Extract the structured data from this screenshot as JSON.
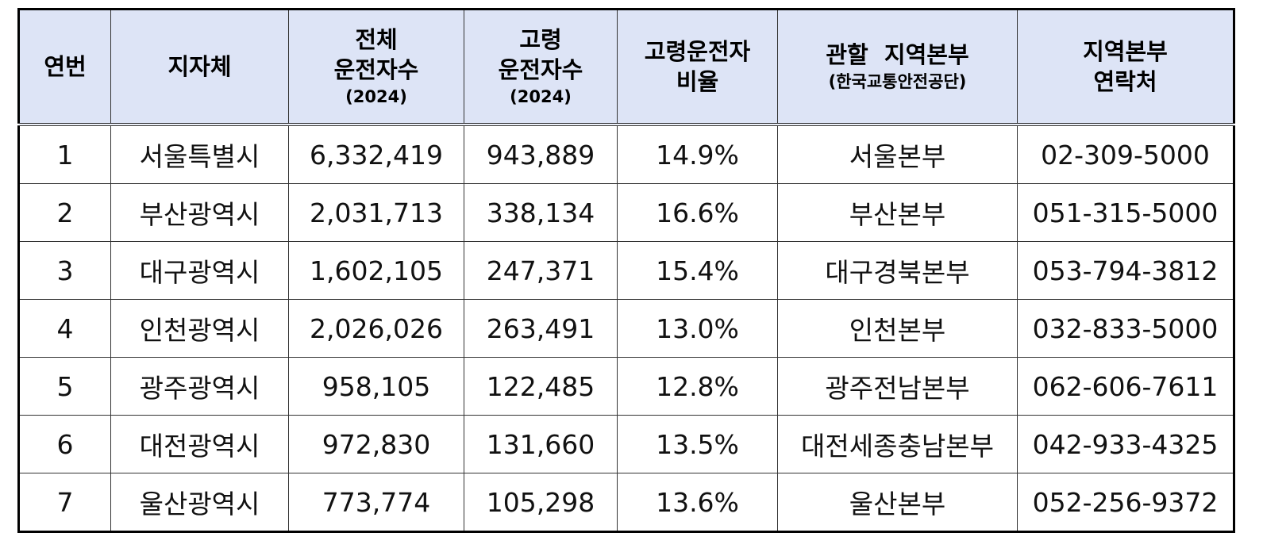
{
  "table": {
    "header": [
      [
        "연번"
      ],
      [
        "지자체"
      ],
      [
        "전체",
        "운전자수",
        "(2024)"
      ],
      [
        "고령",
        "운전자수",
        "(2024)"
      ],
      [
        "고령운전자",
        "비율"
      ],
      [
        "관할  지역본부",
        "(한국교통안전공단)"
      ],
      [
        "지역본부",
        "연락처"
      ]
    ],
    "rows": [
      [
        "1",
        "서울특별시",
        "6,332,419",
        "943,889",
        "14.9%",
        "서울본부",
        "02-309-5000"
      ],
      [
        "2",
        "부산광역시",
        "2,031,713",
        "338,134",
        "16.6%",
        "부산본부",
        "051-315-5000"
      ],
      [
        "3",
        "대구광역시",
        "1,602,105",
        "247,371",
        "15.4%",
        "대구경북본부",
        "053-794-3812"
      ],
      [
        "4",
        "인천광역시",
        "2,026,026",
        "263,491",
        "13.0%",
        "인천본부",
        "032-833-5000"
      ],
      [
        "5",
        "광주광역시",
        "958,105",
        "122,485",
        "12.8%",
        "광주전남본부",
        "062-606-7611"
      ],
      [
        "6",
        "대전광역시",
        "972,830",
        "131,660",
        "13.5%",
        "대전세종충남본부",
        "042-933-4325"
      ],
      [
        "7",
        "울산광역시",
        "773,774",
        "105,298",
        "13.6%",
        "울산본부",
        "052-256-9372"
      ]
    ]
  }
}
